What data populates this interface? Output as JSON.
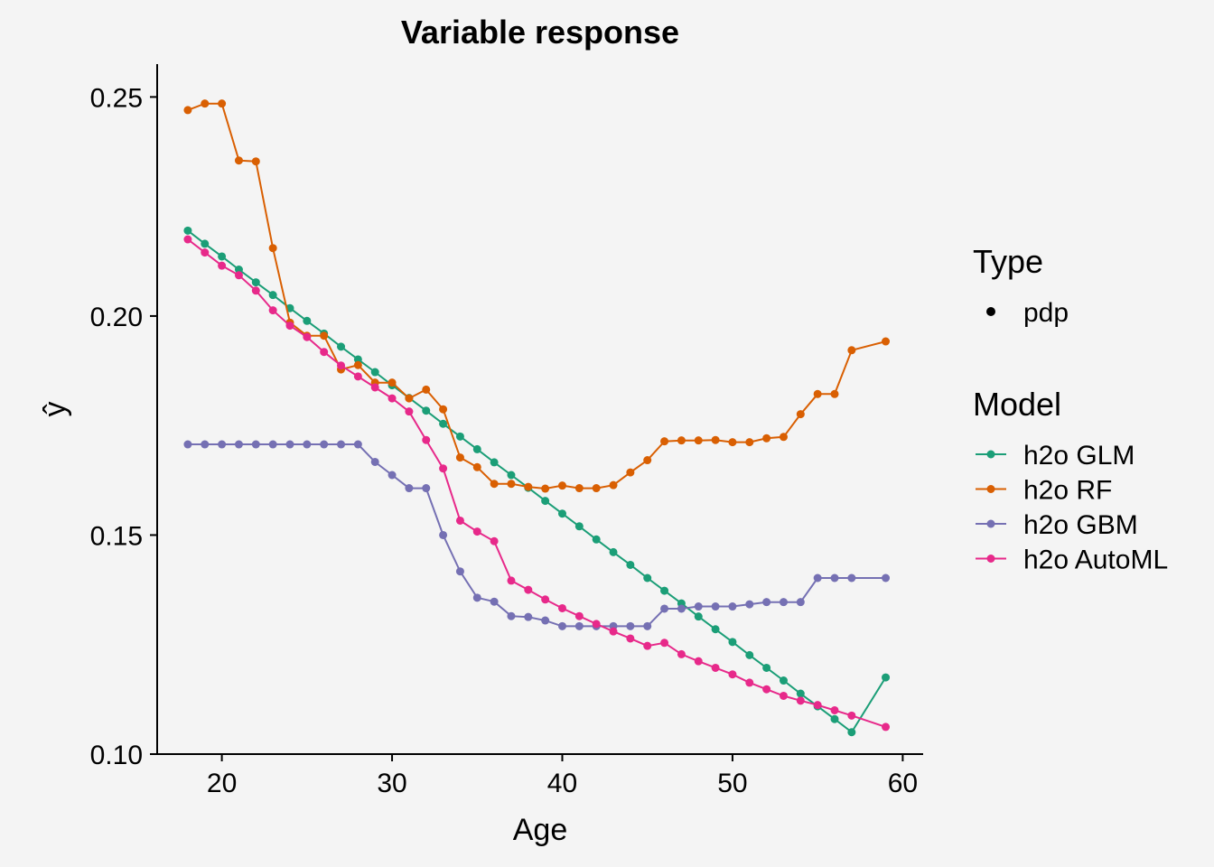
{
  "chart_data": {
    "type": "line",
    "title": "Variable response",
    "xlabel": "Age",
    "ylabel": "ŷ",
    "xlim": [
      16.2,
      61.2
    ],
    "ylim": [
      0.1,
      0.2575
    ],
    "xticks": [
      20,
      30,
      40,
      50,
      60
    ],
    "yticks": [
      0.1,
      0.15,
      0.2,
      0.25
    ],
    "ytick_labels": [
      "0.10",
      "0.15",
      "0.20",
      "0.25"
    ],
    "grid": false,
    "legend_position": "right",
    "x": [
      18,
      19,
      20,
      21,
      22,
      23,
      24,
      25,
      26,
      27,
      28,
      29,
      30,
      31,
      32,
      33,
      34,
      35,
      36,
      37,
      38,
      39,
      40,
      41,
      42,
      43,
      44,
      45,
      46,
      47,
      48,
      49,
      50,
      51,
      52,
      53,
      54,
      55,
      56,
      57,
      59
    ],
    "series": [
      {
        "name": "h2o GLM",
        "color": "#1b9e77",
        "values": [
          0.2195,
          0.2165,
          0.2136,
          0.2106,
          0.2077,
          0.2048,
          0.2018,
          0.1989,
          0.196,
          0.193,
          0.1901,
          0.1872,
          0.1842,
          0.1813,
          0.1784,
          0.1754,
          0.1725,
          0.1696,
          0.1666,
          0.1637,
          0.1608,
          0.1578,
          0.1549,
          0.152,
          0.149,
          0.1461,
          0.1432,
          0.1402,
          0.1373,
          0.1344,
          0.1314,
          0.1285,
          0.1256,
          0.1226,
          0.1197,
          0.1168,
          0.1138,
          0.1109,
          0.108,
          0.105,
          0.1175
        ]
      },
      {
        "name": "h2o RF",
        "color": "#d95f02",
        "values": [
          0.247,
          0.2485,
          0.2485,
          0.2355,
          0.2353,
          0.2155,
          0.1985,
          0.1955,
          0.1955,
          0.1878,
          0.1888,
          0.1848,
          0.1848,
          0.1812,
          0.1832,
          0.1787,
          0.1677,
          0.1655,
          0.1617,
          0.1617,
          0.161,
          0.1606,
          0.1613,
          0.1607,
          0.1607,
          0.1614,
          0.1643,
          0.1671,
          0.1714,
          0.1716,
          0.1716,
          0.1717,
          0.1712,
          0.1712,
          0.1721,
          0.1724,
          0.1776,
          0.1822,
          0.1822,
          0.1922,
          0.1942
        ]
      },
      {
        "name": "h2o GBM",
        "color": "#7570b3",
        "values": [
          0.1707,
          0.1707,
          0.1707,
          0.1707,
          0.1707,
          0.1707,
          0.1707,
          0.1707,
          0.1707,
          0.1707,
          0.1707,
          0.1667,
          0.1637,
          0.1607,
          0.1607,
          0.15,
          0.1417,
          0.1357,
          0.1348,
          0.1315,
          0.1313,
          0.1305,
          0.1292,
          0.1292,
          0.1292,
          0.1292,
          0.1292,
          0.1292,
          0.1332,
          0.1332,
          0.1337,
          0.1337,
          0.1337,
          0.1342,
          0.1347,
          0.1347,
          0.1347,
          0.1402,
          0.1402,
          0.1402,
          0.1402
        ]
      },
      {
        "name": "h2o AutoML",
        "color": "#e7298a",
        "values": [
          0.2175,
          0.2145,
          0.2115,
          0.2093,
          0.2058,
          0.2013,
          0.1978,
          0.1952,
          0.1918,
          0.1887,
          0.1862,
          0.1837,
          0.1812,
          0.1782,
          0.1717,
          0.1652,
          0.1533,
          0.1508,
          0.1486,
          0.1396,
          0.1375,
          0.1353,
          0.1333,
          0.1315,
          0.1297,
          0.128,
          0.1264,
          0.1247,
          0.1254,
          0.1228,
          0.1212,
          0.1197,
          0.1182,
          0.1163,
          0.1148,
          0.1133,
          0.1122,
          0.1112,
          0.11,
          0.1088,
          0.1062
        ]
      }
    ],
    "legend": {
      "type_title": "Type",
      "type_label": "pdp",
      "model_title": "Model"
    }
  }
}
